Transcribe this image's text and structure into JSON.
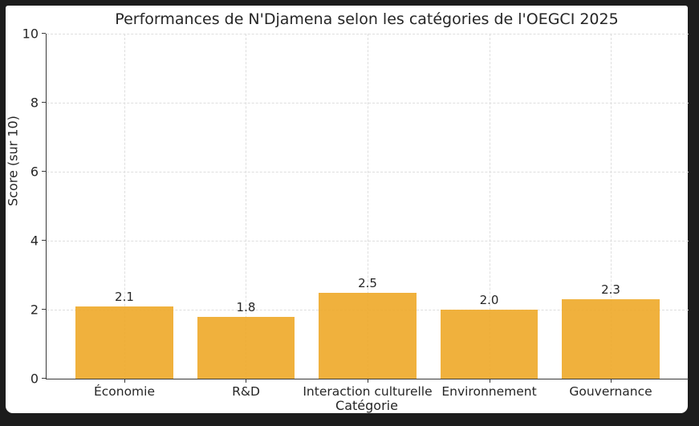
{
  "frame": {
    "background_color": "#1c1c1c",
    "panel_color": "#ffffff"
  },
  "chart_data": {
    "type": "bar",
    "title": "Performances de N'Djamena selon les catégories de l'OEGCI 2025",
    "xlabel": "Catégorie",
    "ylabel": "Score (sur 10)",
    "categories": [
      "Économie",
      "R&D",
      "Interaction culturelle",
      "Environnement",
      "Gouvernance"
    ],
    "values": [
      2.1,
      1.8,
      2.5,
      2.0,
      2.3
    ],
    "value_labels": [
      "2.1",
      "1.8",
      "2.5",
      "2.0",
      "2.3"
    ],
    "ylim": [
      0,
      10
    ],
    "yticks": [
      0,
      2,
      4,
      6,
      8,
      10
    ],
    "grid_on": true,
    "grid_style": "dashed",
    "grid_color": "#dedede",
    "legend": "none",
    "bar_color": "#eea828",
    "bar_alpha": 0.9,
    "axis_color": "#3a3a3a",
    "text_color": "#262626"
  }
}
